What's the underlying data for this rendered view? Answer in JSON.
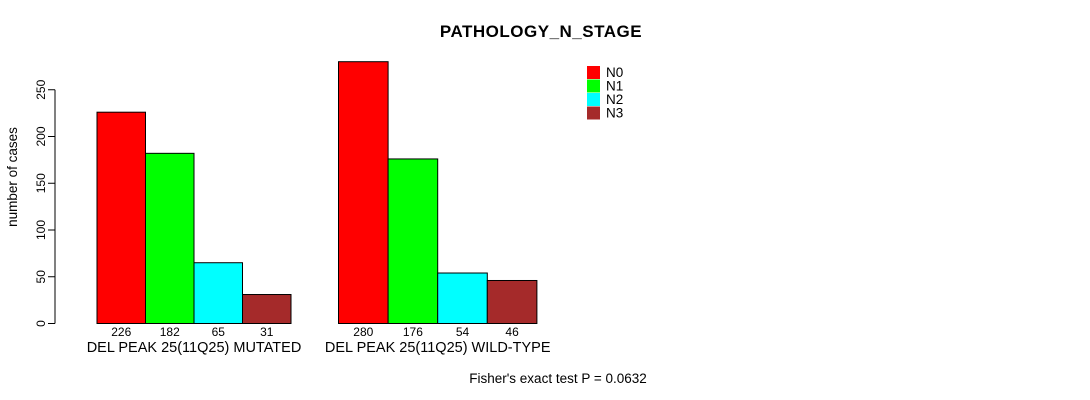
{
  "chart_data": {
    "type": "bar",
    "title": "PATHOLOGY_N_STAGE",
    "xlabel": "",
    "ylabel": "number of cases",
    "ylim": [
      0,
      250
    ],
    "yticks": [
      0,
      50,
      100,
      150,
      200,
      250
    ],
    "grid": false,
    "show_value_labels": true,
    "legend_position": "top-right",
    "series": [
      {
        "name": "N0",
        "color": "#ff0000"
      },
      {
        "name": "N1",
        "color": "#00ff00"
      },
      {
        "name": "N2",
        "color": "#00ffff"
      },
      {
        "name": "N3",
        "color": "#a52a2a"
      }
    ],
    "categories": [
      "DEL PEAK 25(11Q25) MUTATED",
      "DEL PEAK 25(11Q25) WILD-TYPE"
    ],
    "groups": [
      {
        "label": "DEL PEAK 25(11Q25) MUTATED",
        "values": [
          226,
          182,
          65,
          31
        ]
      },
      {
        "label": "DEL PEAK 25(11Q25) WILD-TYPE",
        "values": [
          280,
          176,
          54,
          46
        ]
      }
    ],
    "annotation": "Fisher's exact test P = 0.0632",
    "bar_border_color": "#000000",
    "axis_color": "#000000"
  }
}
